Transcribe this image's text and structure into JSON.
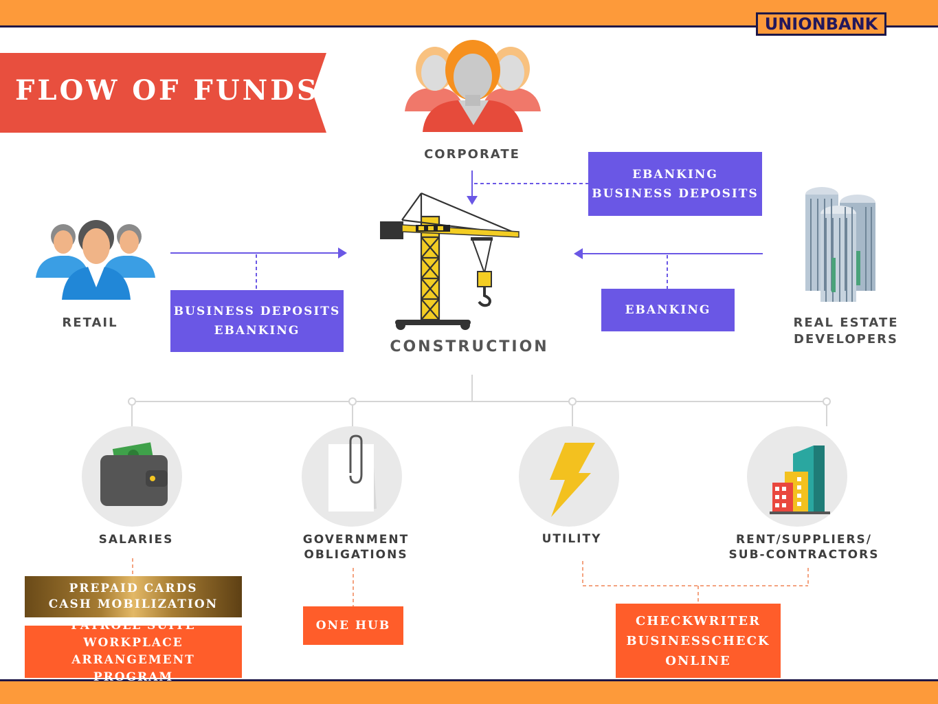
{
  "brand": {
    "logo_text": "UNIONBANK"
  },
  "title": "FLOW OF FUNDS",
  "sources": {
    "corporate": {
      "label": "CORPORATE",
      "icon": "group-people-icon"
    },
    "retail": {
      "label": "RETAIL",
      "icon": "group-people-icon"
    },
    "real_estate": {
      "label": "REAL ESTATE\nDEVELOPERS",
      "icon": "skyscraper-icon"
    }
  },
  "center": {
    "label": "CONSTRUCTION",
    "icon": "crane-icon"
  },
  "products": {
    "corporate_box": "EBANKING\nBUSINESS DEPOSITS",
    "retail_box": "BUSINESS DEPOSITS\nEBANKING",
    "real_estate_box": "EBANKING"
  },
  "uses": [
    {
      "label": "SALARIES",
      "icon": "wallet-icon"
    },
    {
      "label": "GOVERNMENT\nOBLIGATIONS",
      "icon": "paper-clip-document-icon"
    },
    {
      "label": "UTILITY",
      "icon": "lightning-bolt-icon"
    },
    {
      "label": "RENT/SUPPLIERS/\nSUB-CONTRACTORS",
      "icon": "buildings-icon"
    }
  ],
  "solutions": {
    "salaries_gold": "PREPAID CARDS\nCASH MOBILIZATION",
    "salaries_orange": "PAYROLL SUITE\nWORKPLACE ARRANGEMENT\nPROGRAM",
    "government": "ONE HUB",
    "utility_rent": "CHECKWRITER\nBUSINESSCHECK\nONLINE"
  },
  "colors": {
    "orange_bar": "#fd9a3a",
    "navy": "#1d1748",
    "ribbon_red": "#e84f3e",
    "purple_box": "#6a57e5",
    "orange_box": "#ff5d2a",
    "gold_box": "#a67c32"
  }
}
